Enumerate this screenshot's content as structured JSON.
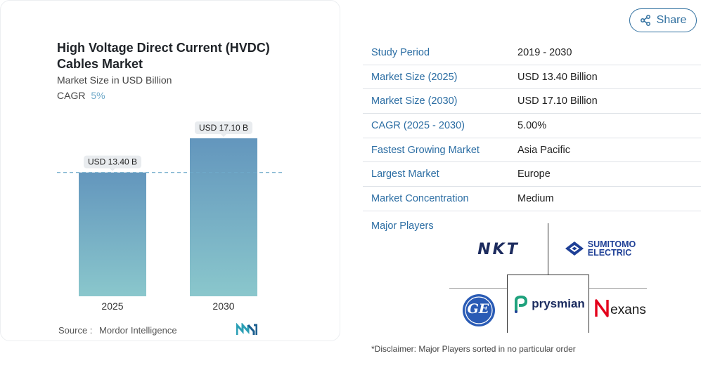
{
  "chart_card": {
    "title": "High Voltage Direct Current (HVDC) Cables Market",
    "subtitle": "Market Size in USD Billion",
    "cagr_label": "CAGR",
    "cagr_value": "5%",
    "source_label": "Source :",
    "source_value": "Mordor Intelligence"
  },
  "chart_data": {
    "type": "bar",
    "categories": [
      "2025",
      "2030"
    ],
    "values": [
      13.4,
      17.1
    ],
    "data_labels": [
      "USD 13.40 B",
      "USD 17.10 B"
    ],
    "title": "High Voltage Direct Current (HVDC) Cables Market",
    "ylabel": "Market Size in USD Billion",
    "reference_line": 13.4,
    "colors": {
      "bar_top": "#6396bd",
      "bar_bottom": "#8ac7cc",
      "reference_line": "#6fa9c9"
    }
  },
  "share": {
    "label": "Share",
    "icon": "share-icon"
  },
  "info_table": [
    {
      "key": "Study Period",
      "value": "2019 - 2030"
    },
    {
      "key": "Market Size (2025)",
      "value": "USD 13.40 Billion"
    },
    {
      "key": "Market Size (2030)",
      "value": "USD 17.10 Billion"
    },
    {
      "key": "CAGR (2025 - 2030)",
      "value": "5.00%"
    },
    {
      "key": "Fastest Growing Market",
      "value": "Asia Pacific"
    },
    {
      "key": "Largest Market",
      "value": "Europe"
    },
    {
      "key": "Market Concentration",
      "value": "Medium"
    }
  ],
  "players": {
    "label": "Major Players",
    "logos": [
      {
        "name": "NKT",
        "text": "NKT"
      },
      {
        "name": "Sumitomo Electric",
        "text_line1": "SUMITOMO",
        "text_line2": "ELECTRIC"
      },
      {
        "name": "GE",
        "text": "GE"
      },
      {
        "name": "Prysmian",
        "text": "prysmian"
      },
      {
        "name": "Nexans",
        "text": "exans"
      }
    ]
  },
  "disclaimer": "*Disclaimer: Major Players sorted in no particular order",
  "colors": {
    "accent": "#2b6da3",
    "share_border": "#2f6f9f",
    "sumitomo": "#1e3f96",
    "nexans_red": "#e3001b"
  }
}
